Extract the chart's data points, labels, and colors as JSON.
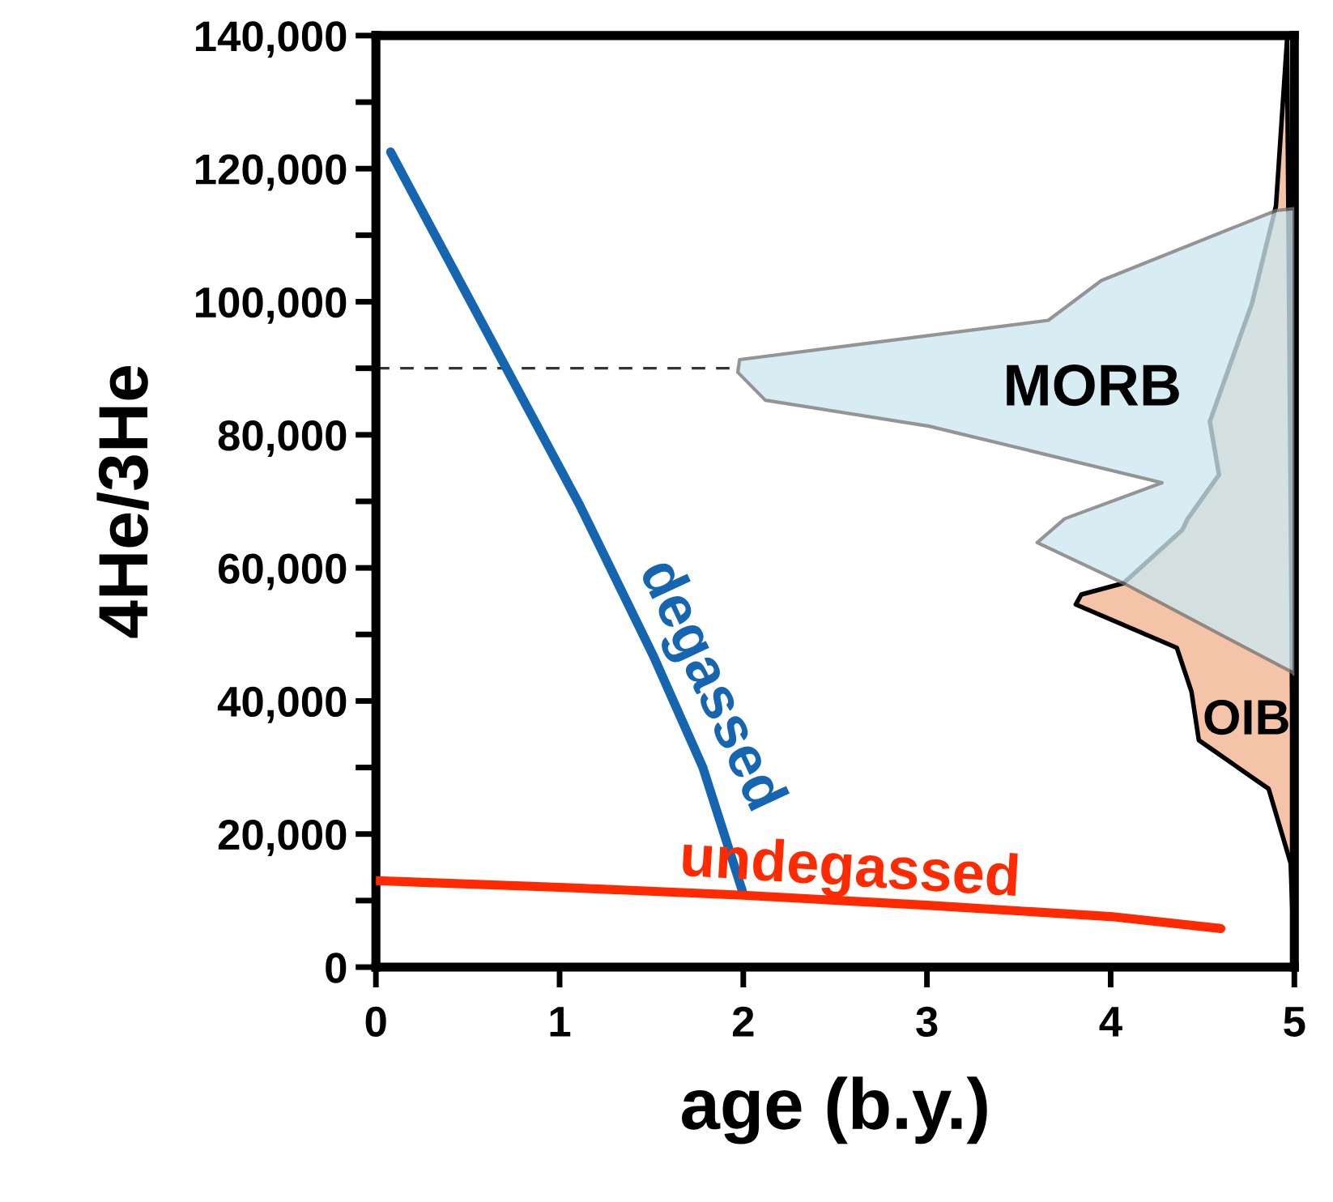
{
  "chart_data": {
    "type": "line",
    "xlabel": "age (b.y.)",
    "ylabel": "4He/3He",
    "xlim": [
      0,
      5
    ],
    "xticks": [
      0,
      1,
      2,
      3,
      4,
      5
    ],
    "ylim": [
      0,
      140000
    ],
    "yticks": [
      {
        "value": 0,
        "label": "0"
      },
      {
        "value": 10000,
        "label": null
      },
      {
        "value": 20000,
        "label": "20,000"
      },
      {
        "value": 30000,
        "label": null
      },
      {
        "value": 40000,
        "label": "40,000"
      },
      {
        "value": 50000,
        "label": null
      },
      {
        "value": 60000,
        "label": "60,000"
      },
      {
        "value": 70000,
        "label": null
      },
      {
        "value": 80000,
        "label": "80,000"
      },
      {
        "value": 90000,
        "label": null
      },
      {
        "value": 100000,
        "label": "100,000"
      },
      {
        "value": 110000,
        "label": null
      },
      {
        "value": 120000,
        "label": "120,000"
      },
      {
        "value": 130000,
        "label": null
      },
      {
        "value": 140000,
        "label": "140,000"
      }
    ],
    "grid": false,
    "legend": false,
    "marker": "none",
    "line_style": "solid",
    "ref_lines": [
      {
        "axis": "y",
        "value": 90000,
        "line_style": "dashed",
        "color": "#333333"
      }
    ],
    "series": [
      {
        "name": "OIB",
        "type": "area",
        "color": "#f5c4a8",
        "x": [
          5.0,
          4.98,
          4.86,
          4.48,
          4.44,
          4.36,
          3.81,
          3.84,
          4.07,
          4.39,
          4.42,
          4.59,
          4.54,
          4.77,
          4.9,
          4.96
        ],
        "values": [
          0,
          15600,
          26800,
          34100,
          41400,
          48000,
          54500,
          56000,
          57700,
          65700,
          67400,
          74000,
          82000,
          99800,
          114400,
          139300
        ]
      },
      {
        "name": "MORB",
        "type": "area",
        "color": "#cce8f0",
        "x": [
          5.0,
          4.99,
          4.57,
          4.07,
          3.6,
          3.75,
          4.28,
          3.01,
          2.12,
          1.97,
          1.98,
          3.66,
          3.95,
          4.9,
          5.0
        ],
        "values": [
          44000,
          44300,
          50400,
          57700,
          63800,
          67400,
          72800,
          81300,
          85200,
          89400,
          91300,
          97200,
          103200,
          113700,
          114000
        ]
      },
      {
        "name": "degassed",
        "color": "#1565b0",
        "x": [
          0.08,
          0.71,
          1.11,
          1.51,
          1.78,
          2.0
        ],
        "values": [
          122500,
          90000,
          69400,
          46800,
          30000,
          11000
        ]
      },
      {
        "name": "undegassed",
        "color": "#ff2a00",
        "x": [
          0,
          1,
          2,
          3,
          4,
          4.6
        ],
        "values": [
          13000,
          12000,
          10800,
          9300,
          7600,
          5800
        ]
      }
    ]
  }
}
